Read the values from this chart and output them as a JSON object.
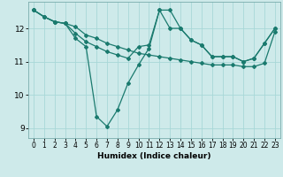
{
  "xlabel": "Humidex (Indice chaleur)",
  "background_color": "#ceeaea",
  "line_color": "#1a7a6e",
  "grid_color": "#a8d8d8",
  "xlim": [
    -0.5,
    23.5
  ],
  "ylim": [
    8.7,
    12.8
  ],
  "yticks": [
    9,
    10,
    11,
    12
  ],
  "xticks": [
    0,
    1,
    2,
    3,
    4,
    5,
    6,
    7,
    8,
    9,
    10,
    11,
    12,
    13,
    14,
    15,
    16,
    17,
    18,
    19,
    20,
    21,
    22,
    23
  ],
  "series1_x": [
    0,
    1,
    2,
    3,
    4,
    5,
    6,
    7,
    8,
    9,
    10,
    11,
    12,
    13,
    14,
    15,
    16,
    17,
    18,
    19,
    20,
    21,
    22,
    23
  ],
  "series1_y": [
    12.55,
    12.35,
    12.2,
    12.15,
    12.05,
    11.8,
    11.7,
    11.55,
    11.45,
    11.35,
    11.25,
    11.2,
    11.15,
    11.1,
    11.05,
    11.0,
    10.95,
    10.9,
    10.9,
    10.9,
    10.85,
    10.85,
    10.95,
    11.9
  ],
  "series2_x": [
    0,
    1,
    2,
    3,
    4,
    5,
    6,
    7,
    8,
    9,
    10,
    11,
    12,
    13,
    14,
    15,
    16,
    17,
    18,
    19,
    20,
    21,
    22,
    23
  ],
  "series2_y": [
    12.55,
    12.35,
    12.2,
    12.15,
    11.85,
    11.6,
    11.45,
    11.3,
    11.2,
    11.1,
    11.45,
    11.5,
    12.55,
    12.0,
    12.0,
    11.65,
    11.5,
    11.15,
    11.15,
    11.15,
    11.0,
    11.1,
    11.55,
    12.0
  ],
  "series3_x": [
    0,
    1,
    2,
    3,
    4,
    5,
    6,
    7,
    8,
    9,
    10,
    11,
    12,
    13,
    14,
    15,
    16,
    17,
    18,
    19,
    20,
    21,
    22,
    23
  ],
  "series3_y": [
    12.55,
    12.35,
    12.2,
    12.15,
    11.7,
    11.45,
    9.35,
    9.05,
    9.55,
    10.35,
    10.9,
    11.4,
    12.55,
    12.55,
    12.0,
    11.65,
    11.5,
    11.15,
    11.15,
    11.15,
    11.0,
    11.1,
    11.55,
    12.0
  ],
  "marker": "D",
  "markersize": 2.0,
  "linewidth": 0.9
}
